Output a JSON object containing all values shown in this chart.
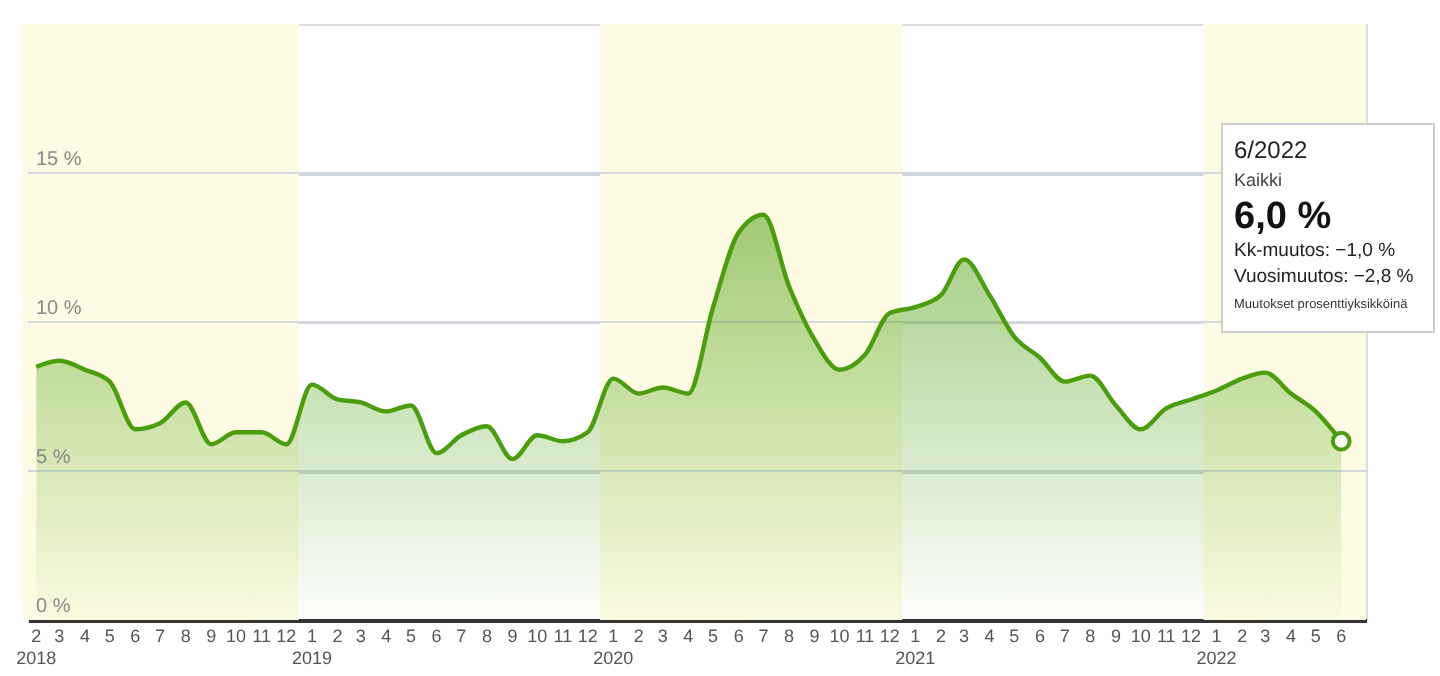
{
  "chart_data": {
    "type": "area",
    "x": [
      "2018-02",
      "2018-03",
      "2018-04",
      "2018-05",
      "2018-06",
      "2018-07",
      "2018-08",
      "2018-09",
      "2018-10",
      "2018-11",
      "2018-12",
      "2019-01",
      "2019-02",
      "2019-03",
      "2019-04",
      "2019-05",
      "2019-06",
      "2019-07",
      "2019-08",
      "2019-09",
      "2019-10",
      "2019-11",
      "2019-12",
      "2020-01",
      "2020-02",
      "2020-03",
      "2020-04",
      "2020-05",
      "2020-06",
      "2020-07",
      "2020-08",
      "2020-09",
      "2020-10",
      "2020-11",
      "2020-12",
      "2021-01",
      "2021-02",
      "2021-03",
      "2021-04",
      "2021-05",
      "2021-06",
      "2021-07",
      "2021-08",
      "2021-09",
      "2021-10",
      "2021-11",
      "2021-12",
      "2022-01",
      "2022-02",
      "2022-03",
      "2022-04",
      "2022-05",
      "2022-06"
    ],
    "series": [
      {
        "color": "#4a9e0e",
        "values": [
          8.5,
          8.7,
          8.4,
          8.0,
          6.4,
          6.6,
          7.3,
          5.9,
          6.3,
          6.3,
          5.9,
          7.9,
          7.4,
          7.3,
          7.0,
          7.2,
          5.6,
          6.2,
          6.5,
          5.4,
          6.2,
          6.0,
          6.3,
          8.1,
          7.6,
          7.8,
          7.6,
          10.5,
          13.0,
          13.6,
          11.2,
          9.4,
          8.4,
          8.9,
          10.3,
          10.5,
          10.9,
          12.1,
          10.9,
          9.5,
          8.8,
          8.0,
          8.2,
          7.2,
          6.4,
          7.1,
          7.4,
          7.7,
          8.1,
          8.3,
          7.6,
          7.0,
          6.0
        ]
      }
    ],
    "xlim": [
      "2018-01-22",
      "2022-07-01"
    ],
    "ylim": [
      0,
      20
    ],
    "yticks": [
      {
        "value": 0,
        "label": "0 %"
      },
      {
        "value": 5,
        "label": "5 %"
      },
      {
        "value": 10,
        "label": "10 %"
      },
      {
        "value": 15,
        "label": "15 %"
      }
    ],
    "xticks": [
      {
        "value": "2018-02",
        "label": "2\n2018"
      },
      {
        "value": "2018-03",
        "label": "3"
      },
      {
        "value": "2018-04",
        "label": "4"
      },
      {
        "value": "2018-05",
        "label": "5"
      },
      {
        "value": "2018-06",
        "label": "6"
      },
      {
        "value": "2018-07",
        "label": "7"
      },
      {
        "value": "2018-08",
        "label": "8"
      },
      {
        "value": "2018-09",
        "label": "9"
      },
      {
        "value": "2018-10",
        "label": "10"
      },
      {
        "value": "2018-11",
        "label": "11"
      },
      {
        "value": "2018-12",
        "label": "12"
      },
      {
        "value": "2019-01",
        "label": "1\n2019"
      },
      {
        "value": "2019-02",
        "label": "2"
      },
      {
        "value": "2019-03",
        "label": "3"
      },
      {
        "value": "2019-04",
        "label": "4"
      },
      {
        "value": "2019-05",
        "label": "5"
      },
      {
        "value": "2019-06",
        "label": "6"
      },
      {
        "value": "2019-07",
        "label": "7"
      },
      {
        "value": "2019-08",
        "label": "8"
      },
      {
        "value": "2019-09",
        "label": "9"
      },
      {
        "value": "2019-10",
        "label": "10"
      },
      {
        "value": "2019-11",
        "label": "11"
      },
      {
        "value": "2019-12",
        "label": "12"
      },
      {
        "value": "2020-01",
        "label": "1\n2020"
      },
      {
        "value": "2020-02",
        "label": "2"
      },
      {
        "value": "2020-03",
        "label": "3"
      },
      {
        "value": "2020-04",
        "label": "4"
      },
      {
        "value": "2020-05",
        "label": "5"
      },
      {
        "value": "2020-06",
        "label": "6"
      },
      {
        "value": "2020-07",
        "label": "7"
      },
      {
        "value": "2020-08",
        "label": "8"
      },
      {
        "value": "2020-09",
        "label": "9"
      },
      {
        "value": "2020-10",
        "label": "10"
      },
      {
        "value": "2020-11",
        "label": "11"
      },
      {
        "value": "2020-12",
        "label": "12"
      },
      {
        "value": "2021-01",
        "label": "1\n2021"
      },
      {
        "value": "2021-02",
        "label": "2"
      },
      {
        "value": "2021-03",
        "label": "3"
      },
      {
        "value": "2021-04",
        "label": "4"
      },
      {
        "value": "2021-05",
        "label": "5"
      },
      {
        "value": "2021-06",
        "label": "6"
      },
      {
        "value": "2021-07",
        "label": "7"
      },
      {
        "value": "2021-08",
        "label": "8"
      },
      {
        "value": "2021-09",
        "label": "9"
      },
      {
        "value": "2021-10",
        "label": "10"
      },
      {
        "value": "2021-11",
        "label": "11"
      },
      {
        "value": "2021-12",
        "label": "12"
      },
      {
        "value": "2022-01",
        "label": "1\n2022"
      },
      {
        "value": "2022-02",
        "label": "2"
      },
      {
        "value": "2022-03",
        "label": "3"
      },
      {
        "value": "2022-04",
        "label": "4"
      },
      {
        "value": "2022-05",
        "label": "5"
      },
      {
        "value": "2022-06",
        "label": "6"
      }
    ],
    "grid": "y",
    "bands": [
      {
        "axis": "x",
        "from": "2018-01-16",
        "to": "2018-12-16",
        "color": "#fdfbe3"
      },
      {
        "axis": "x",
        "from": "2019-12-16",
        "to": "2020-12-16",
        "color": "#fdfbe3"
      },
      {
        "axis": "x",
        "from": "2021-12-16",
        "to": "2022-07-01",
        "color": "#fdfbe3"
      }
    ],
    "annotations": [
      "6/2022",
      "Kaikki",
      "6,0 %",
      "Kk-muutos: −1,0 %",
      "Vuosimuutos: −2,8 %",
      "Muutokset prosenttiyksikköinä"
    ]
  }
}
